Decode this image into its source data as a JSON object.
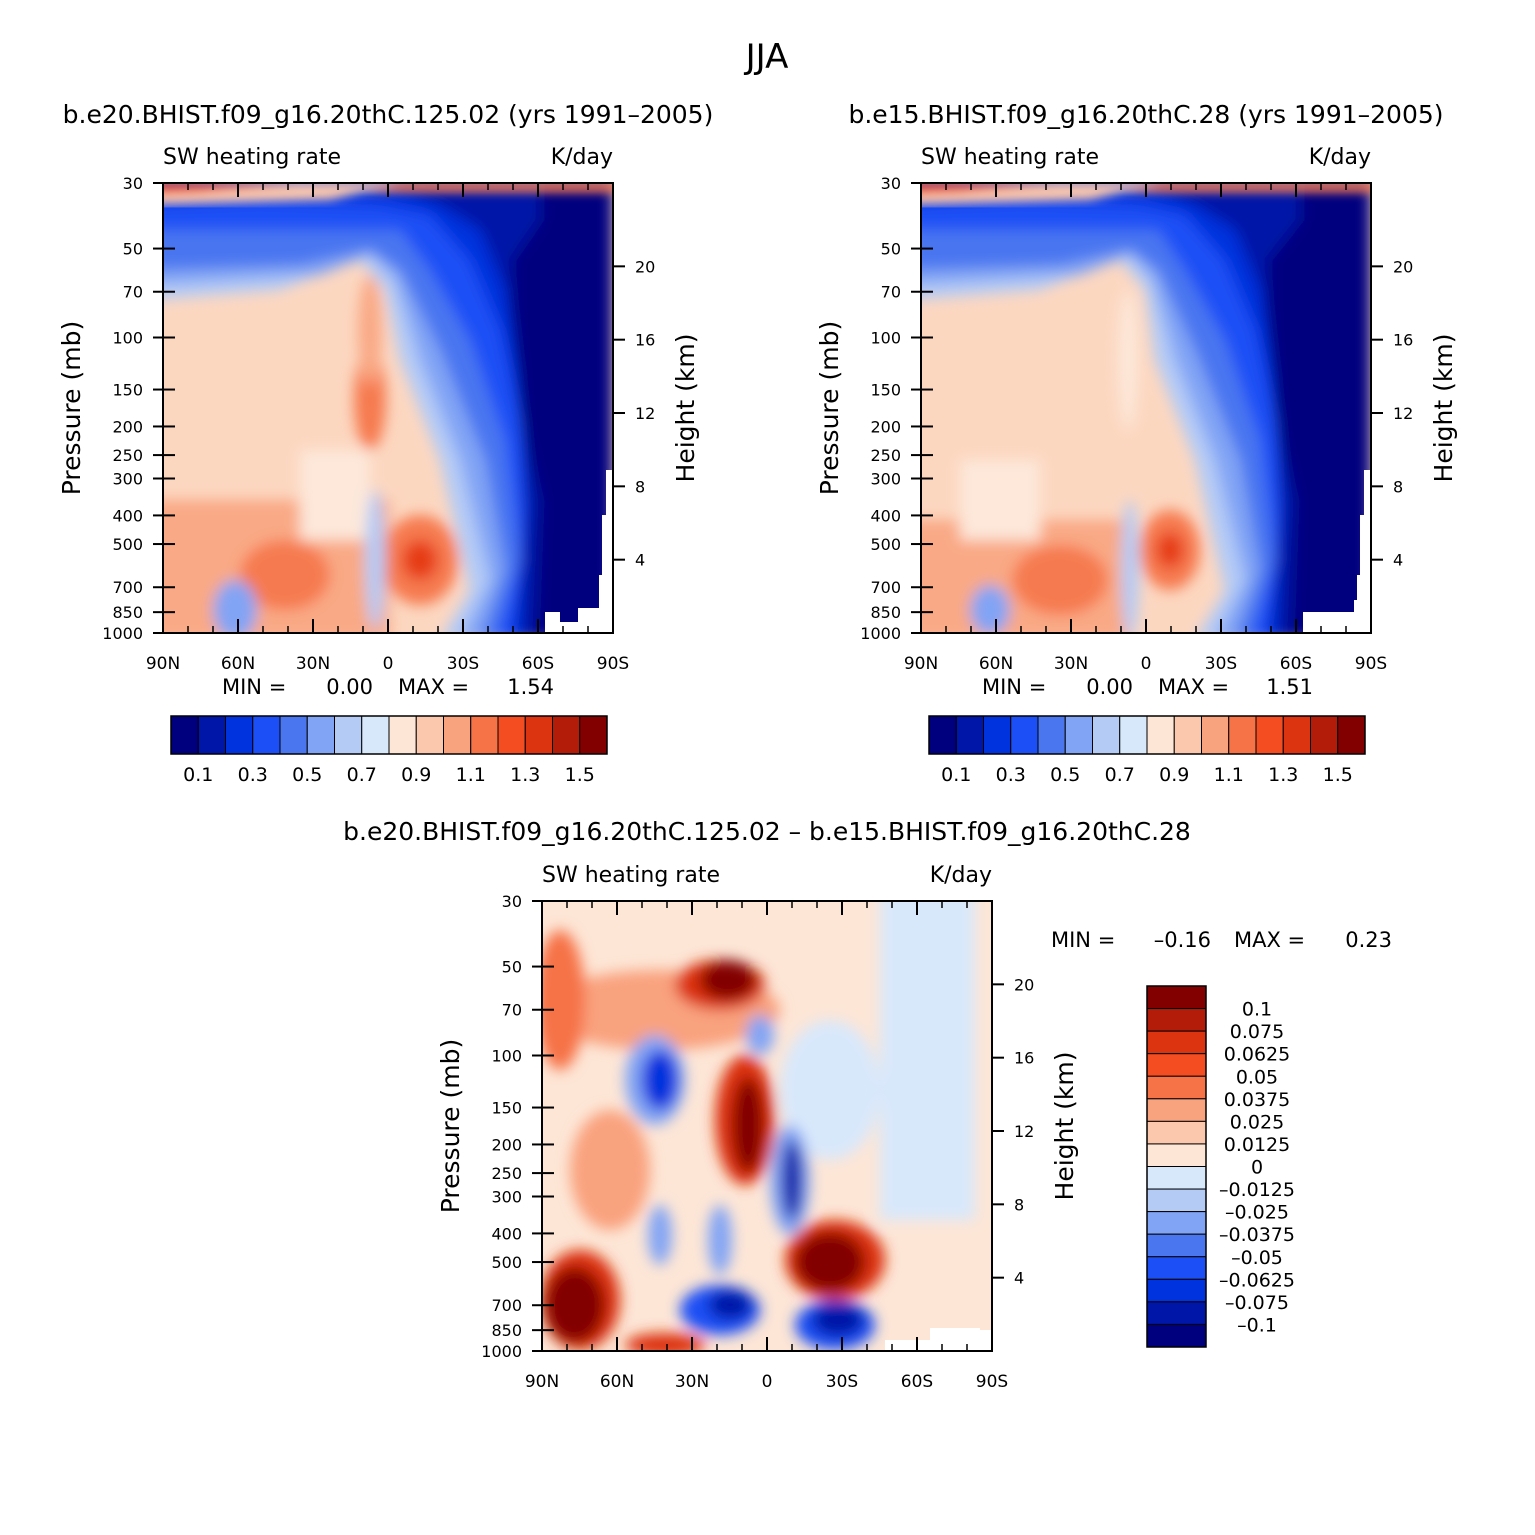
{
  "figure_title": "JJA",
  "chart_data": [
    {
      "id": "p1",
      "type": "heatmap",
      "title": "b.e20.BHIST.f09_g16.20thC.125.02 (yrs 1991–2005)",
      "left_string": "SW heating rate",
      "right_string": "K/day",
      "ylabel": "Pressure (mb)",
      "y2label": "Height (km)",
      "x_ticks": [
        "90N",
        "60N",
        "30N",
        "0",
        "30S",
        "60S",
        "90S"
      ],
      "y_ticks": [
        "30",
        "50",
        "70",
        "100",
        "150",
        "200",
        "250",
        "300",
        "400",
        "500",
        "700",
        "850",
        "1000"
      ],
      "y2_ticks": [
        "20",
        "16",
        "12",
        "8",
        "4"
      ],
      "min": "0.00",
      "max": "1.54",
      "min_label": "MIN =",
      "max_label": "MAX =",
      "colorbar_labels": [
        "0.1",
        "0.3",
        "0.5",
        "0.7",
        "0.9",
        "1.1",
        "1.3",
        "1.5"
      ],
      "colorbar_colors": [
        "#00007f",
        "#0016a8",
        "#0033dd",
        "#1c4ff5",
        "#4a76f0",
        "#82a4f4",
        "#b4cbf6",
        "#d8e8fb",
        "#fde6d6",
        "#fcc8ad",
        "#f9a27e",
        "#f67247",
        "#f54d22",
        "#dc3310",
        "#b41c0a",
        "#820000"
      ]
    },
    {
      "id": "p2",
      "type": "heatmap",
      "title": "b.e15.BHIST.f09_g16.20thC.28 (yrs 1991–2005)",
      "left_string": "SW heating rate",
      "right_string": "K/day",
      "ylabel": "Pressure (mb)",
      "y2label": "Height (km)",
      "x_ticks": [
        "90N",
        "60N",
        "30N",
        "0",
        "30S",
        "60S",
        "90S"
      ],
      "y_ticks": [
        "30",
        "50",
        "70",
        "100",
        "150",
        "200",
        "250",
        "300",
        "400",
        "500",
        "700",
        "850",
        "1000"
      ],
      "y2_ticks": [
        "20",
        "16",
        "12",
        "8",
        "4"
      ],
      "min": "0.00",
      "max": "1.51",
      "min_label": "MIN =",
      "max_label": "MAX =",
      "colorbar_labels": [
        "0.1",
        "0.3",
        "0.5",
        "0.7",
        "0.9",
        "1.1",
        "1.3",
        "1.5"
      ],
      "colorbar_colors": [
        "#00007f",
        "#0016a8",
        "#0033dd",
        "#1c4ff5",
        "#4a76f0",
        "#82a4f4",
        "#b4cbf6",
        "#d8e8fb",
        "#fde6d6",
        "#fcc8ad",
        "#f9a27e",
        "#f67247",
        "#f54d22",
        "#dc3310",
        "#b41c0a",
        "#820000"
      ]
    },
    {
      "id": "p3",
      "type": "heatmap",
      "title": "b.e20.BHIST.f09_g16.20thC.125.02 – b.e15.BHIST.f09_g16.20thC.28",
      "left_string": "SW heating rate",
      "right_string": "K/day",
      "ylabel": "Pressure (mb)",
      "y2label": "Height (km)",
      "x_ticks": [
        "90N",
        "60N",
        "30N",
        "0",
        "30S",
        "60S",
        "90S"
      ],
      "y_ticks": [
        "30",
        "50",
        "70",
        "100",
        "150",
        "200",
        "250",
        "300",
        "400",
        "500",
        "700",
        "850",
        "1000"
      ],
      "y2_ticks": [
        "20",
        "16",
        "12",
        "8",
        "4"
      ],
      "min": "–0.16",
      "max": "0.23",
      "min_label": "MIN =",
      "max_label": "MAX =",
      "colorbar_labels": [
        "0.1",
        "0.075",
        "0.0625",
        "0.05",
        "0.0375",
        "0.025",
        "0.0125",
        "0",
        "–0.0125",
        "–0.025",
        "–0.0375",
        "–0.05",
        "–0.0625",
        "–0.075",
        "–0.1"
      ],
      "colorbar_colors": [
        "#820000",
        "#b41c0a",
        "#dc3310",
        "#f54d22",
        "#f67247",
        "#f9a27e",
        "#fcc8ad",
        "#fde6d6",
        "#d8e8fb",
        "#b4cbf6",
        "#82a4f4",
        "#4a76f0",
        "#1c4ff5",
        "#0033dd",
        "#0016a8",
        "#00007f"
      ]
    }
  ]
}
